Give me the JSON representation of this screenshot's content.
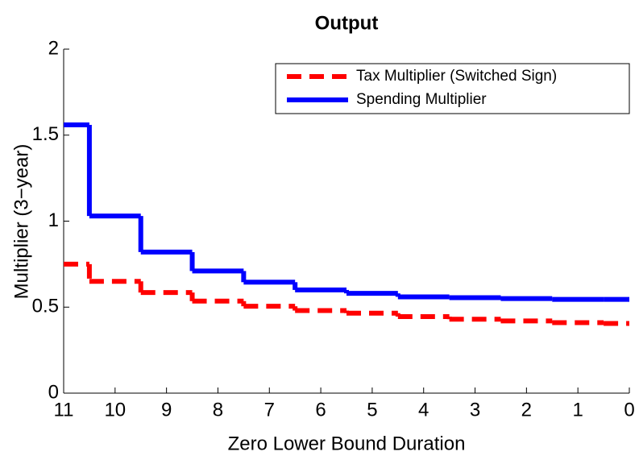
{
  "chart_data": {
    "type": "line",
    "step": "mid",
    "title": "Output",
    "x_label": "Zero Lower Bound Duration",
    "y_label": "Multiplier (3−year)",
    "x": [
      11,
      10,
      9,
      8,
      7,
      6,
      5,
      4,
      3,
      2,
      1,
      0
    ],
    "series": [
      {
        "name": "Tax Multiplier (Switched Sign)",
        "color": "#ff0000",
        "dash": true,
        "values": [
          0.75,
          0.65,
          0.585,
          0.535,
          0.505,
          0.48,
          0.465,
          0.445,
          0.43,
          0.42,
          0.41,
          0.405
        ]
      },
      {
        "name": "Spending Multiplier",
        "color": "#0000ff",
        "dash": false,
        "values": [
          1.56,
          1.03,
          0.82,
          0.71,
          0.645,
          0.6,
          0.58,
          0.56,
          0.555,
          0.55,
          0.545,
          0.545
        ]
      }
    ],
    "xlim": [
      11,
      0
    ],
    "xticks": [
      11,
      10,
      9,
      8,
      7,
      6,
      5,
      4,
      3,
      2,
      1,
      0
    ],
    "ylim": [
      0,
      2
    ],
    "yticks": [
      0,
      0.5,
      1,
      1.5,
      2
    ],
    "grid": false,
    "legend": "upper right"
  }
}
